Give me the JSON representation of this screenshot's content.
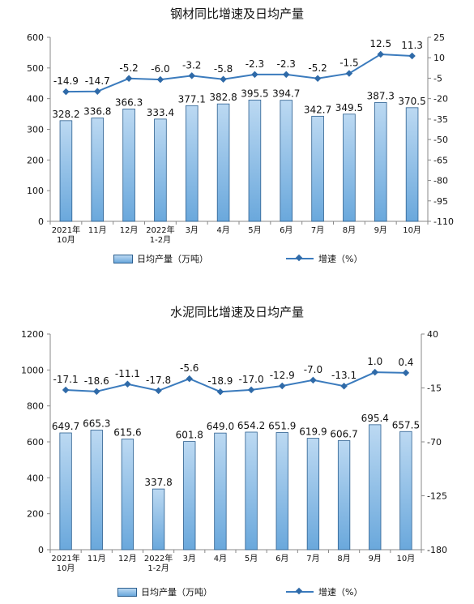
{
  "colors": {
    "bar_fill_top": "#bcd9f2",
    "bar_fill_bottom": "#6aa8dc",
    "bar_stroke": "#2c5f8f",
    "line": "#3b7bbd",
    "marker": "#2f6aa8",
    "axis": "#888888"
  },
  "chart_data": [
    {
      "type": "bar+line",
      "title": "钢材同比增速及日均产量",
      "categories": [
        "2021年\n10月",
        "11月",
        "12月",
        "2022年\n1-2月",
        "3月",
        "4月",
        "5月",
        "6月",
        "7月",
        "8月",
        "9月",
        "10月"
      ],
      "series": [
        {
          "name": "日均产量（万吨）",
          "kind": "bar",
          "axis": "left",
          "values": [
            328.2,
            336.8,
            366.3,
            333.4,
            377.1,
            382.8,
            395.5,
            394.7,
            342.7,
            349.5,
            387.3,
            370.5
          ]
        },
        {
          "name": "增速（%）",
          "kind": "line",
          "axis": "right",
          "values": [
            -14.9,
            -14.7,
            -5.2,
            -6.0,
            -3.2,
            -5.8,
            -2.3,
            -2.3,
            -5.2,
            -1.5,
            12.5,
            11.3
          ]
        }
      ],
      "ylim_left": [
        0,
        600
      ],
      "yticks_left": [
        0,
        100,
        200,
        300,
        400,
        500,
        600
      ],
      "ylim_right": [
        -110,
        25
      ],
      "yticks_right": [
        -110,
        -95,
        -80,
        -65,
        -50,
        -35,
        -20,
        -5,
        10,
        25
      ],
      "bar_labels": [
        "328.2",
        "336.8",
        "366.3",
        "333.4",
        "377.1",
        "382.8",
        "395.5",
        "394.7",
        "342.7",
        "349.5",
        "387.3",
        "370.5"
      ],
      "line_labels": [
        "-14.9",
        "-14.7",
        "-5.2",
        "-6.0",
        "-3.2",
        "-5.8",
        "-2.3",
        "-2.3",
        "-5.2",
        "-1.5",
        "12.5",
        "11.3"
      ],
      "grid": false,
      "legend_position": "bottom"
    },
    {
      "type": "bar+line",
      "title": "水泥同比增速及日均产量",
      "categories": [
        "2021年\n10月",
        "11月",
        "12月",
        "2022年\n1-2月",
        "3月",
        "4月",
        "5月",
        "6月",
        "7月",
        "8月",
        "9月",
        "10月"
      ],
      "series": [
        {
          "name": "日均产量（万吨）",
          "kind": "bar",
          "axis": "left",
          "values": [
            649.7,
            665.3,
            615.6,
            337.8,
            601.8,
            649.0,
            654.2,
            651.9,
            619.9,
            606.7,
            695.4,
            657.5
          ]
        },
        {
          "name": "增速（%）",
          "kind": "line",
          "axis": "right",
          "values": [
            -17.1,
            -18.6,
            -11.1,
            -17.8,
            -5.6,
            -18.9,
            -17.0,
            -12.9,
            -7.0,
            -13.1,
            1.0,
            0.4
          ]
        }
      ],
      "ylim_left": [
        0,
        1200
      ],
      "yticks_left": [
        0,
        200,
        400,
        600,
        800,
        1000,
        1200
      ],
      "ylim_right": [
        -180,
        40
      ],
      "yticks_right": [
        -180,
        -125,
        -70,
        -15,
        40
      ],
      "bar_labels": [
        "649.7",
        "665.3",
        "615.6",
        "337.8",
        "601.8",
        "649.0",
        "654.2",
        "651.9",
        "619.9",
        "606.7",
        "695.4",
        "657.5"
      ],
      "line_labels": [
        "-17.1",
        "-18.6",
        "-11.1",
        "-17.8",
        "-5.6",
        "-18.9",
        "-17.0",
        "-12.9",
        "-7.0",
        "-13.1",
        "1.0",
        "0.4"
      ],
      "grid": false,
      "legend_position": "bottom"
    }
  ]
}
